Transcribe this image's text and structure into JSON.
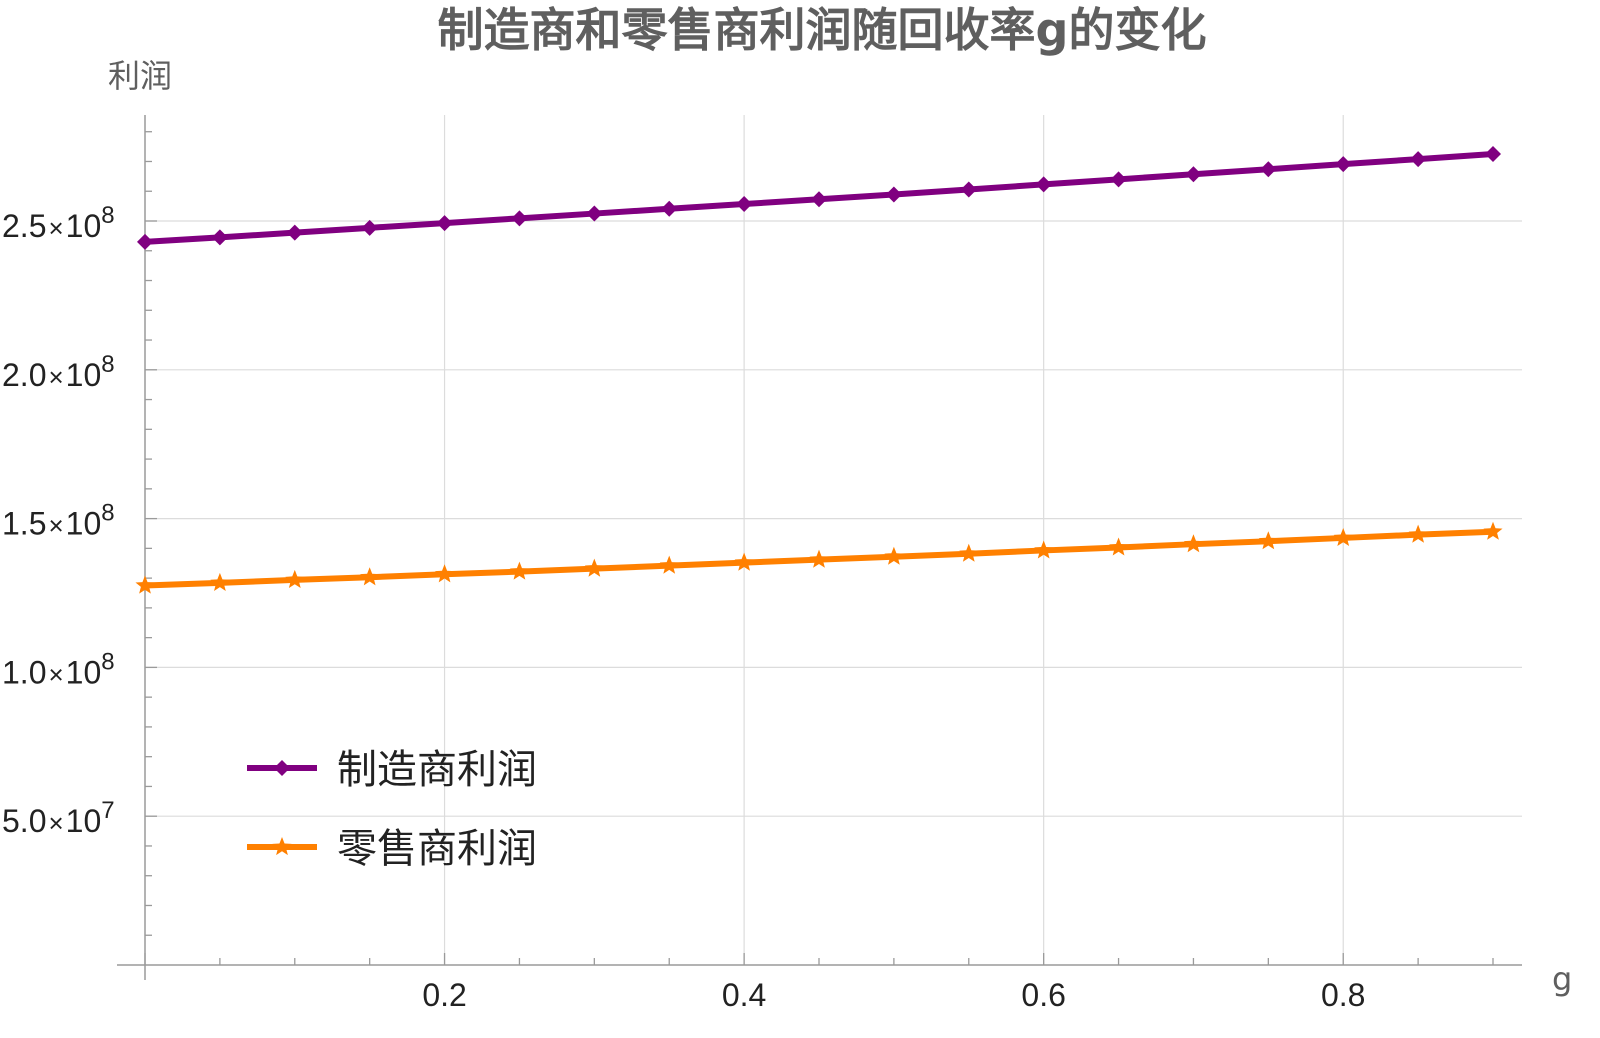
{
  "chart_data": {
    "type": "line",
    "title": "制造商和零售商利润随回收率g的变化",
    "xlabel": "g",
    "ylabel": "利润",
    "xlim": [
      0,
      0.92
    ],
    "ylim": [
      0,
      280000000
    ],
    "x_ticks": [
      0.2,
      0.4,
      0.6,
      0.8
    ],
    "x_tick_labels": [
      "0.2",
      "0.4",
      "0.6",
      "0.8"
    ],
    "y_ticks": [
      50000000,
      100000000,
      150000000,
      200000000,
      250000000
    ],
    "y_tick_labels": [
      {
        "mantissa": "5.0",
        "times": "×",
        "base": "10",
        "exp": "7"
      },
      {
        "mantissa": "1.0",
        "times": "×",
        "base": "10",
        "exp": "8"
      },
      {
        "mantissa": "1.5",
        "times": "×",
        "base": "10",
        "exp": "8"
      },
      {
        "mantissa": "2.0",
        "times": "×",
        "base": "10",
        "exp": "8"
      },
      {
        "mantissa": "2.5",
        "times": "×",
        "base": "10",
        "exp": "8"
      }
    ],
    "grid": true,
    "legend_position": "lower-left",
    "x": [
      0,
      0.05,
      0.1,
      0.15,
      0.2,
      0.25,
      0.3,
      0.35,
      0.4,
      0.45,
      0.5,
      0.55,
      0.6,
      0.65,
      0.7,
      0.75,
      0.8,
      0.85,
      0.9
    ],
    "series": [
      {
        "name": "制造商利润",
        "color": "#800080",
        "marker": "diamond",
        "values": [
          243000000,
          244500000,
          246100000,
          247700000,
          249300000,
          250900000,
          252500000,
          254100000,
          255700000,
          257300000,
          258900000,
          260600000,
          262300000,
          264000000,
          265700000,
          267400000,
          269100000,
          270800000,
          272500000
        ]
      },
      {
        "name": "零售商利润",
        "color": "#ff8000",
        "marker": "star",
        "values": [
          127500000,
          128400000,
          129400000,
          130300000,
          131300000,
          132200000,
          133200000,
          134200000,
          135200000,
          136200000,
          137200000,
          138200000,
          139300000,
          140300000,
          141400000,
          142400000,
          143500000,
          144600000,
          145600000
        ]
      }
    ]
  }
}
